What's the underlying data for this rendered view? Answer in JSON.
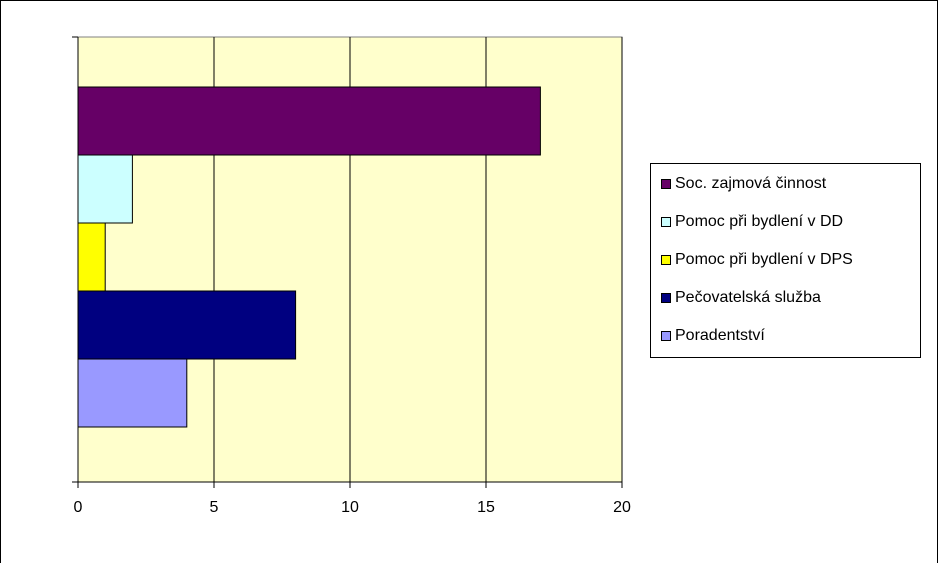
{
  "chart_data": {
    "type": "bar",
    "orientation": "horizontal",
    "title": "",
    "xlabel": "",
    "ylabel": "",
    "xlim": [
      0,
      20
    ],
    "x_ticks": [
      0,
      5,
      10,
      15,
      20
    ],
    "grid": "vertical",
    "legend_position": "right",
    "plot_background": "#ffffcc",
    "series": [
      {
        "name": "Soc. zajmová činnost",
        "value": 17,
        "color": "#660066"
      },
      {
        "name": "Pomoc při bydlení v DD",
        "value": 2,
        "color": "#ccffff"
      },
      {
        "name": "Pomoc při bydlení v DPS",
        "value": 1,
        "color": "#ffff00"
      },
      {
        "name": "Pečovatelská služba",
        "value": 8,
        "color": "#000080"
      },
      {
        "name": "Poradentství",
        "value": 4,
        "color": "#9999ff"
      }
    ]
  }
}
